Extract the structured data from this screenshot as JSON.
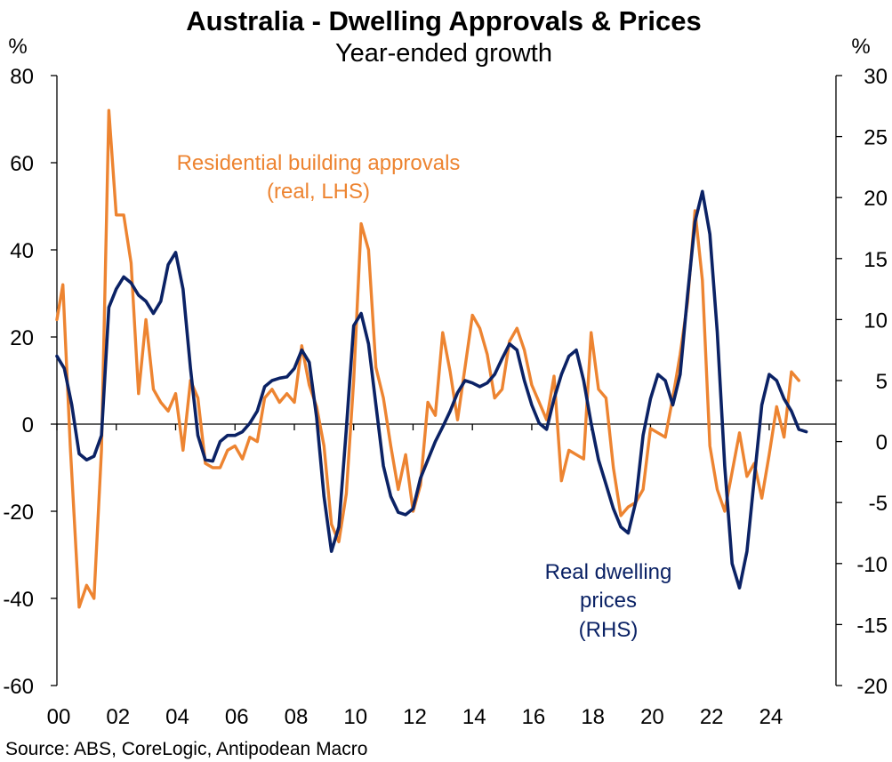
{
  "chart_data": {
    "type": "line",
    "title": "Australia - Dwelling Approvals & Prices",
    "subtitle": "Year-ended growth",
    "source": "Source: ABS, CoreLogic, Antipodean Macro",
    "left_axis": {
      "unit": "%",
      "range": [
        -60,
        80
      ],
      "ticks": [
        "80",
        "60",
        "40",
        "20",
        "0",
        "-20",
        "-40",
        "-60"
      ],
      "tick_values": [
        80,
        60,
        40,
        20,
        0,
        -20,
        -40,
        -60
      ]
    },
    "right_axis": {
      "unit": "%",
      "range": [
        -20,
        30
      ],
      "ticks": [
        "30",
        "25",
        "20",
        "15",
        "10",
        "5",
        "0",
        "-5",
        "-10",
        "-15",
        "-20"
      ],
      "tick_values": [
        30,
        25,
        20,
        15,
        10,
        5,
        0,
        -5,
        -10,
        -15,
        -20
      ]
    },
    "x_axis": {
      "range": [
        2000,
        2026.25
      ],
      "ticks": [
        "00",
        "02",
        "04",
        "06",
        "08",
        "10",
        "12",
        "14",
        "16",
        "18",
        "20",
        "22",
        "24"
      ],
      "tick_values": [
        2000,
        2002,
        2004,
        2006,
        2008,
        2010,
        2012,
        2014,
        2016,
        2018,
        2020,
        2022,
        2024
      ]
    },
    "series": [
      {
        "name": "Residential building approvals (real, LHS)",
        "label_lines": [
          "Residential building approvals",
          "(real, LHS)"
        ],
        "axis": "left",
        "color": "#ED8431",
        "points": [
          [
            2000.0,
            24
          ],
          [
            2000.2,
            32
          ],
          [
            2000.45,
            -5
          ],
          [
            2000.75,
            -42
          ],
          [
            2001.0,
            -37
          ],
          [
            2001.25,
            -40
          ],
          [
            2001.5,
            -6
          ],
          [
            2001.75,
            72
          ],
          [
            2002.0,
            48
          ],
          [
            2002.25,
            48
          ],
          [
            2002.5,
            37
          ],
          [
            2002.75,
            7
          ],
          [
            2003.0,
            24
          ],
          [
            2003.25,
            8
          ],
          [
            2003.5,
            5
          ],
          [
            2003.75,
            3
          ],
          [
            2004.0,
            7
          ],
          [
            2004.25,
            -6
          ],
          [
            2004.5,
            10
          ],
          [
            2004.75,
            6
          ],
          [
            2005.0,
            -9
          ],
          [
            2005.25,
            -10
          ],
          [
            2005.5,
            -10
          ],
          [
            2005.75,
            -6
          ],
          [
            2006.0,
            -5
          ],
          [
            2006.25,
            -8
          ],
          [
            2006.5,
            -3
          ],
          [
            2006.75,
            -4
          ],
          [
            2007.0,
            6
          ],
          [
            2007.25,
            8
          ],
          [
            2007.5,
            5
          ],
          [
            2007.75,
            7
          ],
          [
            2008.0,
            5
          ],
          [
            2008.25,
            18
          ],
          [
            2008.5,
            9
          ],
          [
            2008.75,
            4
          ],
          [
            2009.0,
            -5
          ],
          [
            2009.25,
            -23
          ],
          [
            2009.5,
            -27
          ],
          [
            2009.75,
            -16
          ],
          [
            2010.0,
            10
          ],
          [
            2010.25,
            46
          ],
          [
            2010.5,
            40
          ],
          [
            2010.75,
            13
          ],
          [
            2011.0,
            6
          ],
          [
            2011.25,
            -5
          ],
          [
            2011.5,
            -15
          ],
          [
            2011.75,
            -7
          ],
          [
            2012.0,
            -20
          ],
          [
            2012.25,
            -14
          ],
          [
            2012.5,
            5
          ],
          [
            2012.75,
            2
          ],
          [
            2013.0,
            21
          ],
          [
            2013.25,
            12
          ],
          [
            2013.5,
            1
          ],
          [
            2013.75,
            13
          ],
          [
            2014.0,
            25
          ],
          [
            2014.25,
            22
          ],
          [
            2014.5,
            16
          ],
          [
            2014.75,
            6
          ],
          [
            2015.0,
            8
          ],
          [
            2015.25,
            19
          ],
          [
            2015.5,
            22
          ],
          [
            2015.75,
            17
          ],
          [
            2016.0,
            9
          ],
          [
            2016.25,
            5
          ],
          [
            2016.5,
            1
          ],
          [
            2016.75,
            11
          ],
          [
            2017.0,
            -13
          ],
          [
            2017.25,
            -6
          ],
          [
            2017.5,
            -7
          ],
          [
            2017.75,
            -8
          ],
          [
            2018.0,
            21
          ],
          [
            2018.25,
            8
          ],
          [
            2018.5,
            6
          ],
          [
            2018.75,
            -10
          ],
          [
            2019.0,
            -21
          ],
          [
            2019.25,
            -19
          ],
          [
            2019.5,
            -18
          ],
          [
            2019.75,
            -15
          ],
          [
            2020.0,
            -1
          ],
          [
            2020.25,
            -2
          ],
          [
            2020.5,
            -3
          ],
          [
            2020.75,
            6
          ],
          [
            2021.0,
            16
          ],
          [
            2021.25,
            28
          ],
          [
            2021.5,
            49
          ],
          [
            2021.75,
            33
          ],
          [
            2022.0,
            -5
          ],
          [
            2022.25,
            -15
          ],
          [
            2022.5,
            -20
          ],
          [
            2022.75,
            -11
          ],
          [
            2023.0,
            -2
          ],
          [
            2023.25,
            -12
          ],
          [
            2023.5,
            -9
          ],
          [
            2023.75,
            -17
          ],
          [
            2024.0,
            -7
          ],
          [
            2024.25,
            4
          ],
          [
            2024.5,
            -3
          ],
          [
            2024.75,
            12
          ],
          [
            2025.0,
            10
          ]
        ]
      },
      {
        "name": "Real dwelling prices (RHS)",
        "label_lines": [
          "Real dwelling",
          "prices",
          "(RHS)"
        ],
        "axis": "right",
        "color": "#0B2265",
        "points": [
          [
            2000.0,
            7.0
          ],
          [
            2000.25,
            6.0
          ],
          [
            2000.5,
            3.0
          ],
          [
            2000.75,
            -1.0
          ],
          [
            2001.0,
            -1.5
          ],
          [
            2001.25,
            -1.2
          ],
          [
            2001.5,
            0.5
          ],
          [
            2001.75,
            11.0
          ],
          [
            2002.0,
            12.5
          ],
          [
            2002.25,
            13.5
          ],
          [
            2002.5,
            13.0
          ],
          [
            2002.75,
            12.0
          ],
          [
            2003.0,
            11.5
          ],
          [
            2003.25,
            10.5
          ],
          [
            2003.5,
            11.5
          ],
          [
            2003.75,
            14.5
          ],
          [
            2004.0,
            15.5
          ],
          [
            2004.25,
            12.5
          ],
          [
            2004.5,
            6.0
          ],
          [
            2004.75,
            0.5
          ],
          [
            2005.0,
            -1.5
          ],
          [
            2005.25,
            -1.6
          ],
          [
            2005.5,
            0.0
          ],
          [
            2005.75,
            0.5
          ],
          [
            2006.0,
            0.5
          ],
          [
            2006.25,
            0.8
          ],
          [
            2006.5,
            1.5
          ],
          [
            2006.75,
            2.5
          ],
          [
            2007.0,
            4.5
          ],
          [
            2007.25,
            5.0
          ],
          [
            2007.5,
            5.2
          ],
          [
            2007.75,
            5.3
          ],
          [
            2008.0,
            6.0
          ],
          [
            2008.25,
            7.5
          ],
          [
            2008.5,
            6.5
          ],
          [
            2008.75,
            2.0
          ],
          [
            2009.0,
            -4.5
          ],
          [
            2009.25,
            -9.0
          ],
          [
            2009.5,
            -7.0
          ],
          [
            2009.75,
            1.0
          ],
          [
            2010.0,
            9.5
          ],
          [
            2010.25,
            10.5
          ],
          [
            2010.5,
            8.0
          ],
          [
            2010.75,
            3.0
          ],
          [
            2011.0,
            -2.0
          ],
          [
            2011.25,
            -4.5
          ],
          [
            2011.5,
            -5.8
          ],
          [
            2011.75,
            -6.0
          ],
          [
            2012.0,
            -5.5
          ],
          [
            2012.25,
            -3.0
          ],
          [
            2012.5,
            -1.5
          ],
          [
            2012.75,
            0.0
          ],
          [
            2013.0,
            1.2
          ],
          [
            2013.25,
            2.5
          ],
          [
            2013.5,
            4.0
          ],
          [
            2013.75,
            5.0
          ],
          [
            2014.0,
            4.8
          ],
          [
            2014.25,
            4.5
          ],
          [
            2014.5,
            4.8
          ],
          [
            2014.75,
            5.5
          ],
          [
            2015.0,
            6.8
          ],
          [
            2015.25,
            8.0
          ],
          [
            2015.5,
            7.5
          ],
          [
            2015.75,
            5.0
          ],
          [
            2016.0,
            3.0
          ],
          [
            2016.25,
            1.5
          ],
          [
            2016.5,
            1.0
          ],
          [
            2016.75,
            3.5
          ],
          [
            2017.0,
            5.5
          ],
          [
            2017.25,
            7.0
          ],
          [
            2017.5,
            7.5
          ],
          [
            2017.75,
            5.0
          ],
          [
            2018.0,
            1.5
          ],
          [
            2018.25,
            -1.5
          ],
          [
            2018.5,
            -3.5
          ],
          [
            2018.75,
            -5.5
          ],
          [
            2019.0,
            -7.0
          ],
          [
            2019.25,
            -7.5
          ],
          [
            2019.5,
            -5.0
          ],
          [
            2019.75,
            0.5
          ],
          [
            2020.0,
            3.5
          ],
          [
            2020.25,
            5.5
          ],
          [
            2020.5,
            5.0
          ],
          [
            2020.75,
            3.0
          ],
          [
            2021.0,
            5.5
          ],
          [
            2021.25,
            12.0
          ],
          [
            2021.5,
            18.0
          ],
          [
            2021.75,
            20.5
          ],
          [
            2022.0,
            17.0
          ],
          [
            2022.25,
            9.0
          ],
          [
            2022.5,
            -2.0
          ],
          [
            2022.75,
            -10.0
          ],
          [
            2023.0,
            -12.0
          ],
          [
            2023.25,
            -9.0
          ],
          [
            2023.5,
            -3.0
          ],
          [
            2023.75,
            3.0
          ],
          [
            2024.0,
            5.5
          ],
          [
            2024.25,
            5.0
          ],
          [
            2024.5,
            3.5
          ],
          [
            2024.75,
            2.5
          ],
          [
            2025.0,
            1.0
          ],
          [
            2025.25,
            0.8
          ]
        ]
      }
    ]
  }
}
